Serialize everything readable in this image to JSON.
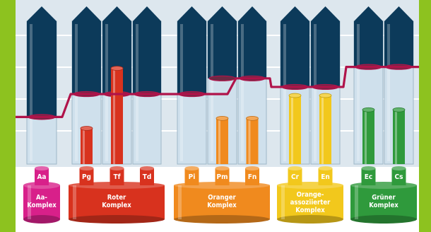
{
  "colors": {
    "frame_green": "#8DC21F",
    "panel_bg": "#DDE7EE",
    "grid_line": "#ffffff",
    "tube_glass": "#CFE0EC",
    "tube_dark": "#0C3A5A",
    "level_line": "#B0134A",
    "aa": "#D8208A",
    "roter": "#D8321E",
    "oranger": "#F08A1E",
    "orange_assoz": "#F2C81C",
    "gruener": "#2F9A3C"
  },
  "levels": {
    "aa": 0.33,
    "roter": 0.49,
    "oranger_pi": 0.49,
    "oranger": 0.6,
    "orange_assoz": 0.54,
    "gruener": 0.68
  },
  "fill_heights": {
    "Pg": 0.25,
    "Tf": 0.67,
    "Pm": 0.32,
    "Fn": 0.32,
    "Cr": 0.48,
    "En": 0.48,
    "Ec": 0.38,
    "Cs": 0.38
  },
  "complexes": [
    {
      "id": "aa",
      "name_lines": [
        "Aa-",
        "Komplex"
      ],
      "members": [
        {
          "code": "Aa"
        }
      ]
    },
    {
      "id": "roter",
      "name_lines": [
        "Roter",
        "Komplex"
      ],
      "members": [
        {
          "code": "Pg"
        },
        {
          "code": "Tf"
        },
        {
          "code": "Td"
        }
      ]
    },
    {
      "id": "oranger",
      "name_lines": [
        "Oranger",
        "Komplex"
      ],
      "members": [
        {
          "code": "Pi"
        },
        {
          "code": "Pm"
        },
        {
          "code": "Fn"
        }
      ]
    },
    {
      "id": "orange_assoz",
      "name_lines": [
        "Orange-",
        "assoziierter",
        "Komplex"
      ],
      "members": [
        {
          "code": "Cr"
        },
        {
          "code": "En"
        }
      ]
    },
    {
      "id": "gruener",
      "name_lines": [
        "Grüner",
        "Komplex"
      ],
      "members": [
        {
          "code": "Ec"
        },
        {
          "code": "Cs"
        }
      ]
    }
  ]
}
